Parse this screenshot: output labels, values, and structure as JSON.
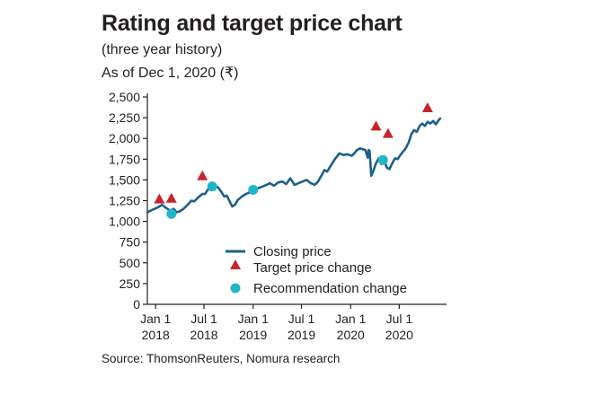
{
  "header": {
    "title": "Rating and target price chart",
    "subtitle": "(three year history)",
    "as_of": "As of Dec 1, 2020 (₹)"
  },
  "footer": {
    "source": "Source: ThomsonReuters, Nomura research"
  },
  "colors": {
    "line": "#1d5f8a",
    "triangle": "#c8242b",
    "circle": "#21b5c9",
    "axis": "#231f20"
  },
  "chart_data": {
    "type": "line",
    "ylim": [
      0,
      2500
    ],
    "yticks": [
      0,
      250,
      500,
      750,
      1000,
      1250,
      1500,
      1750,
      2000,
      2250,
      2500
    ],
    "ytick_labels": [
      "0",
      "250",
      "500",
      "750",
      "1,000",
      "1,250",
      "1,500",
      "1,750",
      "2,000",
      "2,250",
      "2,500"
    ],
    "xlim": [
      "2017-12-01",
      "2020-12-25"
    ],
    "xticks": [
      {
        "date": "2018-01-01",
        "line1": "Jan 1",
        "line2": "2018"
      },
      {
        "date": "2018-07-01",
        "line1": "Jul 1",
        "line2": "2018"
      },
      {
        "date": "2019-01-01",
        "line1": "Jan 1",
        "line2": "2019"
      },
      {
        "date": "2019-07-01",
        "line1": "Jul 1",
        "line2": "2019"
      },
      {
        "date": "2020-01-01",
        "line1": "Jan 1",
        "line2": "2020"
      },
      {
        "date": "2020-07-01",
        "line1": "Jul 1",
        "line2": "2020"
      }
    ],
    "legend": {
      "position": "bottom-right",
      "entries": [
        "Closing price",
        "Target price change",
        "Recommendation change"
      ]
    },
    "series": [
      {
        "name": "Closing price",
        "points": [
          [
            "2017-12-01",
            1110
          ],
          [
            "2017-12-20",
            1140
          ],
          [
            "2018-01-10",
            1170
          ],
          [
            "2018-01-25",
            1200
          ],
          [
            "2018-02-10",
            1160
          ],
          [
            "2018-02-25",
            1130
          ],
          [
            "2018-03-10",
            1150
          ],
          [
            "2018-03-20",
            1110
          ],
          [
            "2018-04-01",
            1120
          ],
          [
            "2018-04-15",
            1150
          ],
          [
            "2018-05-01",
            1200
          ],
          [
            "2018-05-15",
            1250
          ],
          [
            "2018-05-25",
            1240
          ],
          [
            "2018-06-10",
            1290
          ],
          [
            "2018-06-25",
            1330
          ],
          [
            "2018-07-05",
            1330
          ],
          [
            "2018-07-15",
            1380
          ],
          [
            "2018-07-25",
            1440
          ],
          [
            "2018-08-05",
            1460
          ],
          [
            "2018-08-15",
            1430
          ],
          [
            "2018-08-25",
            1400
          ],
          [
            "2018-09-05",
            1350
          ],
          [
            "2018-09-15",
            1300
          ],
          [
            "2018-09-25",
            1310
          ],
          [
            "2018-10-05",
            1240
          ],
          [
            "2018-10-15",
            1180
          ],
          [
            "2018-10-25",
            1200
          ],
          [
            "2018-11-05",
            1260
          ],
          [
            "2018-11-20",
            1300
          ],
          [
            "2018-12-05",
            1330
          ],
          [
            "2018-12-20",
            1350
          ],
          [
            "2019-01-05",
            1380
          ],
          [
            "2019-01-20",
            1400
          ],
          [
            "2019-02-05",
            1420
          ],
          [
            "2019-02-20",
            1440
          ],
          [
            "2019-03-05",
            1460
          ],
          [
            "2019-03-20",
            1430
          ],
          [
            "2019-04-05",
            1470
          ],
          [
            "2019-04-20",
            1480
          ],
          [
            "2019-05-05",
            1450
          ],
          [
            "2019-05-20",
            1520
          ],
          [
            "2019-06-05",
            1440
          ],
          [
            "2019-06-20",
            1460
          ],
          [
            "2019-07-05",
            1480
          ],
          [
            "2019-07-20",
            1500
          ],
          [
            "2019-08-05",
            1460
          ],
          [
            "2019-08-20",
            1440
          ],
          [
            "2019-09-01",
            1480
          ],
          [
            "2019-09-15",
            1560
          ],
          [
            "2019-09-25",
            1620
          ],
          [
            "2019-10-05",
            1600
          ],
          [
            "2019-10-20",
            1680
          ],
          [
            "2019-11-05",
            1760
          ],
          [
            "2019-11-20",
            1820
          ],
          [
            "2019-12-05",
            1800
          ],
          [
            "2019-12-20",
            1810
          ],
          [
            "2020-01-05",
            1790
          ],
          [
            "2020-01-15",
            1820
          ],
          [
            "2020-01-25",
            1860
          ],
          [
            "2020-02-05",
            1880
          ],
          [
            "2020-02-15",
            1870
          ],
          [
            "2020-02-25",
            1860
          ],
          [
            "2020-03-05",
            1770
          ],
          [
            "2020-03-08",
            1860
          ],
          [
            "2020-03-12",
            1850
          ],
          [
            "2020-03-18",
            1550
          ],
          [
            "2020-03-25",
            1600
          ],
          [
            "2020-04-05",
            1700
          ],
          [
            "2020-04-15",
            1760
          ],
          [
            "2020-04-25",
            1690
          ],
          [
            "2020-05-05",
            1740
          ],
          [
            "2020-05-15",
            1650
          ],
          [
            "2020-05-25",
            1630
          ],
          [
            "2020-06-05",
            1700
          ],
          [
            "2020-06-15",
            1760
          ],
          [
            "2020-06-25",
            1750
          ],
          [
            "2020-07-05",
            1800
          ],
          [
            "2020-07-15",
            1840
          ],
          [
            "2020-07-25",
            1880
          ],
          [
            "2020-08-05",
            1950
          ],
          [
            "2020-08-15",
            2050
          ],
          [
            "2020-08-25",
            2100
          ],
          [
            "2020-09-05",
            2080
          ],
          [
            "2020-09-15",
            2150
          ],
          [
            "2020-09-25",
            2180
          ],
          [
            "2020-10-05",
            2150
          ],
          [
            "2020-10-15",
            2200
          ],
          [
            "2020-10-25",
            2180
          ],
          [
            "2020-11-05",
            2210
          ],
          [
            "2020-11-15",
            2170
          ],
          [
            "2020-11-25",
            2220
          ],
          [
            "2020-12-01",
            2240
          ]
        ]
      },
      {
        "name": "Target price change",
        "points": [
          [
            "2018-01-15",
            1270
          ],
          [
            "2018-03-01",
            1280
          ],
          [
            "2018-06-25",
            1550
          ],
          [
            "2020-04-05",
            2150
          ],
          [
            "2020-05-20",
            2060
          ],
          [
            "2020-10-15",
            2370
          ]
        ]
      },
      {
        "name": "Recommendation change",
        "points": [
          [
            "2018-03-01",
            1090
          ],
          [
            "2018-08-01",
            1420
          ],
          [
            "2019-01-01",
            1380
          ],
          [
            "2020-05-01",
            1740
          ]
        ]
      }
    ]
  }
}
